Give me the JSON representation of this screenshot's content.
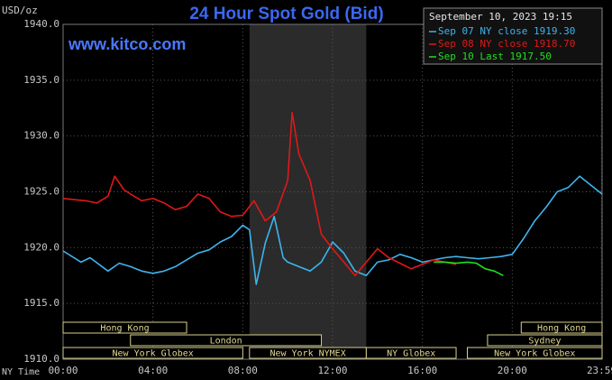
{
  "chart_data": {
    "type": "line",
    "title": "24 Hour Spot Gold (Bid)",
    "subtitle": "www.kitco.com",
    "y_label": "USD/oz",
    "x_label": "NY Time",
    "legend_title": "September 10, 2023 19:15",
    "legend": "upper right",
    "grid": true,
    "xlim": [
      0,
      24
    ],
    "ylim": [
      1910,
      1940
    ],
    "xticks": [
      {
        "value": 0,
        "label": "00:00"
      },
      {
        "value": 4,
        "label": "04:00"
      },
      {
        "value": 8,
        "label": "08:00"
      },
      {
        "value": 12,
        "label": "12:00"
      },
      {
        "value": 16,
        "label": "16:00"
      },
      {
        "value": 20,
        "label": "20:00"
      },
      {
        "value": 23.98,
        "label": "23:59"
      }
    ],
    "yticks": [
      {
        "value": 1910,
        "label": "1910.0"
      },
      {
        "value": 1915,
        "label": "1915.0"
      },
      {
        "value": 1920,
        "label": "1920.0"
      },
      {
        "value": 1925,
        "label": "1925.0"
      },
      {
        "value": 1930,
        "label": "1930.0"
      },
      {
        "value": 1935,
        "label": "1935.0"
      },
      {
        "value": 1940,
        "label": "1940.0"
      }
    ],
    "series": [
      {
        "name": "Sep 07 NY close 1919.30",
        "color": "#3db4ee",
        "x": [
          0,
          0.8,
          1.2,
          2,
          2.5,
          3,
          3.5,
          4,
          4.5,
          5,
          5.5,
          6,
          6.5,
          7,
          7.5,
          8,
          8.3,
          8.6,
          9,
          9.4,
          9.8,
          10,
          10.5,
          11,
          11.5,
          12,
          12.5,
          13,
          13.5,
          14,
          14.5,
          15,
          15.5,
          16,
          16.5,
          17,
          17.5,
          18,
          18.5,
          19,
          19.5,
          20,
          20.5,
          21,
          21.5,
          22,
          22.5,
          23,
          23.5,
          24
        ],
        "values": [
          1919.7,
          1918.7,
          1919.1,
          1917.9,
          1918.6,
          1918.3,
          1917.9,
          1917.7,
          1917.9,
          1918.3,
          1918.9,
          1919.5,
          1919.8,
          1920.5,
          1921.0,
          1922.0,
          1921.6,
          1916.7,
          1920.4,
          1922.8,
          1919.1,
          1918.7,
          1918.3,
          1917.9,
          1918.7,
          1920.5,
          1919.5,
          1917.9,
          1917.5,
          1918.7,
          1918.9,
          1919.4,
          1919.1,
          1918.7,
          1918.9,
          1919.1,
          1919.2,
          1919.1,
          1919.0,
          1919.1,
          1919.2,
          1919.4,
          1920.8,
          1922.4,
          1923.6,
          1925.0,
          1925.4,
          1926.4,
          1925.6,
          1924.8
        ]
      },
      {
        "name": "Sep 08 NY close 1918.70",
        "color": "#e01818",
        "x": [
          0,
          1,
          1.5,
          2,
          2.3,
          2.7,
          3,
          3.5,
          4,
          4.5,
          5,
          5.5,
          6,
          6.5,
          7,
          7.5,
          8,
          8.5,
          9,
          9.5,
          10,
          10.2,
          10.5,
          11,
          11.5,
          12,
          12.5,
          13,
          13.5,
          14,
          14.5,
          15,
          15.5,
          16,
          16.5,
          17,
          17.5
        ],
        "values": [
          1924.4,
          1924.2,
          1924.0,
          1924.6,
          1926.4,
          1925.2,
          1924.8,
          1924.2,
          1924.4,
          1924.0,
          1923.4,
          1923.7,
          1924.8,
          1924.4,
          1923.2,
          1922.8,
          1922.9,
          1924.2,
          1922.4,
          1923.2,
          1926.0,
          1932.1,
          1928.4,
          1926.0,
          1921.2,
          1919.9,
          1918.7,
          1917.5,
          1918.7,
          1919.9,
          1919.1,
          1918.6,
          1918.1,
          1918.5,
          1918.9,
          1918.7,
          1918.5
        ]
      },
      {
        "name": "Sep 10 Last 1917.50",
        "color": "#22dd22",
        "x": [
          16.5,
          17,
          17.5,
          18,
          18.4,
          18.8,
          19.2,
          19.6
        ],
        "values": [
          1918.7,
          1918.7,
          1918.6,
          1918.7,
          1918.6,
          1918.1,
          1917.9,
          1917.5
        ]
      }
    ],
    "sessions": [
      [
        {
          "name": "Hong Kong",
          "start": 0,
          "end": 5.5
        },
        {
          "name": "Hong Kong",
          "start": 20.4,
          "end": 24
        }
      ],
      [
        {
          "name": "London",
          "start": 3,
          "end": 11.5
        },
        {
          "name": "Sydney",
          "start": 18.9,
          "end": 24
        }
      ],
      [
        {
          "name": "New York Globex",
          "start": 0,
          "end": 8
        },
        {
          "name": "New York NYMEX",
          "start": 8.3,
          "end": 13.5
        },
        {
          "name": "NY Globex",
          "start": 13.5,
          "end": 17.5
        },
        {
          "name": "New York Globex",
          "start": 18,
          "end": 24
        }
      ]
    ]
  }
}
